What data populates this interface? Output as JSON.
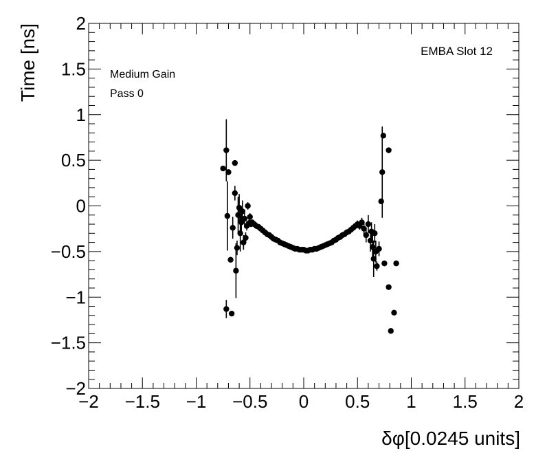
{
  "chart_data": {
    "type": "scatter",
    "title": "",
    "xlabel": "δφ[0.0245 units]",
    "ylabel": "Time [ns]",
    "xlim": [
      -2,
      2
    ],
    "ylim": [
      -2,
      2
    ],
    "x_ticks": [
      "−2",
      "−1.5",
      "−1",
      "−0.5",
      "0",
      "0.5",
      "1",
      "1.5",
      "2"
    ],
    "y_ticks": [
      "−2",
      "−1.5",
      "−1",
      "−0.5",
      "0",
      "0.5",
      "1",
      "1.5",
      "2"
    ],
    "annotations": {
      "top_right": "EMBA Slot 12",
      "line1": "Medium Gain",
      "line2": "Pass 0"
    },
    "grid": false,
    "marker_color": "#000000",
    "points": [
      {
        "x": -0.75,
        "y": 0.41,
        "err": 0
      },
      {
        "x": -0.72,
        "y": 0.61,
        "err": 0.34
      },
      {
        "x": -0.72,
        "y": -1.13,
        "err": 0.1
      },
      {
        "x": -0.71,
        "y": -0.11,
        "err": 0.38
      },
      {
        "x": -0.7,
        "y": 0.37,
        "err": 0
      },
      {
        "x": -0.68,
        "y": -0.59,
        "err": 0
      },
      {
        "x": -0.67,
        "y": -1.18,
        "err": 0
      },
      {
        "x": -0.66,
        "y": -0.24,
        "err": 0.12
      },
      {
        "x": -0.64,
        "y": 0.47,
        "err": 0
      },
      {
        "x": -0.64,
        "y": 0.14,
        "err": 0.08
      },
      {
        "x": -0.63,
        "y": -0.71,
        "err": 0.3
      },
      {
        "x": -0.62,
        "y": -0.46,
        "err": 0.08
      },
      {
        "x": -0.61,
        "y": -0.1,
        "err": 0.2
      },
      {
        "x": -0.6,
        "y": -0.02,
        "err": 0.15
      },
      {
        "x": -0.59,
        "y": -0.3,
        "err": 0.2
      },
      {
        "x": -0.58,
        "y": -0.18,
        "err": 0.1
      },
      {
        "x": -0.57,
        "y": -0.06,
        "err": 0.12
      },
      {
        "x": -0.56,
        "y": -0.4,
        "err": 0.08
      },
      {
        "x": -0.55,
        "y": -0.14,
        "err": 0.1
      },
      {
        "x": -0.54,
        "y": -0.35,
        "err": 0.06
      },
      {
        "x": -0.53,
        "y": -0.22,
        "err": 0.05
      },
      {
        "x": -0.52,
        "y": -0.0,
        "err": 0.04
      },
      {
        "x": -0.51,
        "y": -0.19,
        "err": 0.04
      },
      {
        "x": -0.5,
        "y": -0.12,
        "err": 0.04
      },
      {
        "x": -0.49,
        "y": -0.2,
        "err": 0.03
      },
      {
        "x": -0.48,
        "y": -0.18,
        "err": 0.03
      },
      {
        "x": -0.46,
        "y": -0.2,
        "err": 0.03
      },
      {
        "x": -0.44,
        "y": -0.22,
        "err": 0.03
      },
      {
        "x": -0.42,
        "y": -0.23,
        "err": 0.02
      },
      {
        "x": -0.4,
        "y": -0.25,
        "err": 0.02
      },
      {
        "x": -0.38,
        "y": -0.27,
        "err": 0.02
      },
      {
        "x": -0.36,
        "y": -0.29,
        "err": 0.02
      },
      {
        "x": -0.34,
        "y": -0.31,
        "err": 0.02
      },
      {
        "x": -0.32,
        "y": -0.32,
        "err": 0.02
      },
      {
        "x": -0.3,
        "y": -0.34,
        "err": 0.02
      },
      {
        "x": -0.28,
        "y": -0.36,
        "err": 0.02
      },
      {
        "x": -0.26,
        "y": -0.37,
        "err": 0.02
      },
      {
        "x": -0.24,
        "y": -0.38,
        "err": 0.02
      },
      {
        "x": -0.22,
        "y": -0.4,
        "err": 0.02
      },
      {
        "x": -0.2,
        "y": -0.41,
        "err": 0.02
      },
      {
        "x": -0.18,
        "y": -0.42,
        "err": 0.02
      },
      {
        "x": -0.16,
        "y": -0.43,
        "err": 0.02
      },
      {
        "x": -0.14,
        "y": -0.44,
        "err": 0.02
      },
      {
        "x": -0.12,
        "y": -0.45,
        "err": 0.02
      },
      {
        "x": -0.1,
        "y": -0.46,
        "err": 0.02
      },
      {
        "x": -0.08,
        "y": -0.47,
        "err": 0.02
      },
      {
        "x": -0.06,
        "y": -0.47,
        "err": 0.02
      },
      {
        "x": -0.04,
        "y": -0.48,
        "err": 0.02
      },
      {
        "x": -0.02,
        "y": -0.48,
        "err": 0.02
      },
      {
        "x": 0.0,
        "y": -0.48,
        "err": 0.02
      },
      {
        "x": 0.02,
        "y": -0.49,
        "err": 0.02
      },
      {
        "x": 0.04,
        "y": -0.49,
        "err": 0.02
      },
      {
        "x": 0.06,
        "y": -0.48,
        "err": 0.02
      },
      {
        "x": 0.08,
        "y": -0.48,
        "err": 0.02
      },
      {
        "x": 0.1,
        "y": -0.47,
        "err": 0.02
      },
      {
        "x": 0.12,
        "y": -0.47,
        "err": 0.02
      },
      {
        "x": 0.14,
        "y": -0.46,
        "err": 0.02
      },
      {
        "x": 0.16,
        "y": -0.45,
        "err": 0.02
      },
      {
        "x": 0.18,
        "y": -0.44,
        "err": 0.02
      },
      {
        "x": 0.2,
        "y": -0.43,
        "err": 0.02
      },
      {
        "x": 0.22,
        "y": -0.42,
        "err": 0.02
      },
      {
        "x": 0.24,
        "y": -0.41,
        "err": 0.02
      },
      {
        "x": 0.26,
        "y": -0.4,
        "err": 0.02
      },
      {
        "x": 0.28,
        "y": -0.38,
        "err": 0.02
      },
      {
        "x": 0.3,
        "y": -0.37,
        "err": 0.02
      },
      {
        "x": 0.32,
        "y": -0.35,
        "err": 0.02
      },
      {
        "x": 0.34,
        "y": -0.34,
        "err": 0.02
      },
      {
        "x": 0.36,
        "y": -0.32,
        "err": 0.02
      },
      {
        "x": 0.38,
        "y": -0.31,
        "err": 0.02
      },
      {
        "x": 0.4,
        "y": -0.29,
        "err": 0.02
      },
      {
        "x": 0.42,
        "y": -0.28,
        "err": 0.03
      },
      {
        "x": 0.44,
        "y": -0.26,
        "err": 0.03
      },
      {
        "x": 0.46,
        "y": -0.24,
        "err": 0.03
      },
      {
        "x": 0.48,
        "y": -0.22,
        "err": 0.03
      },
      {
        "x": 0.5,
        "y": -0.2,
        "err": 0.04
      },
      {
        "x": 0.52,
        "y": -0.22,
        "err": 0.04
      },
      {
        "x": 0.54,
        "y": -0.18,
        "err": 0.05
      },
      {
        "x": 0.56,
        "y": -0.25,
        "err": 0.06
      },
      {
        "x": 0.58,
        "y": -0.32,
        "err": 0.08
      },
      {
        "x": 0.6,
        "y": -0.2,
        "err": 0.1
      },
      {
        "x": 0.62,
        "y": -0.38,
        "err": 0.12
      },
      {
        "x": 0.63,
        "y": -0.28,
        "err": 0.1
      },
      {
        "x": 0.64,
        "y": -0.45,
        "err": 0.15
      },
      {
        "x": 0.65,
        "y": -0.58,
        "err": 0.2
      },
      {
        "x": 0.66,
        "y": -0.3,
        "err": 0.1
      },
      {
        "x": 0.67,
        "y": -0.5,
        "err": 0.12
      },
      {
        "x": 0.68,
        "y": -0.66,
        "err": 0.05
      },
      {
        "x": 0.7,
        "y": -0.47,
        "err": 0.08
      },
      {
        "x": 0.72,
        "y": 0.05,
        "err": 0
      },
      {
        "x": 0.73,
        "y": 0.37,
        "err": 0.5
      },
      {
        "x": 0.74,
        "y": 0.77,
        "err": 0
      },
      {
        "x": 0.75,
        "y": -0.63,
        "err": 0
      },
      {
        "x": 0.79,
        "y": 0.61,
        "err": 0
      },
      {
        "x": 0.79,
        "y": -0.89,
        "err": 0
      },
      {
        "x": 0.81,
        "y": -1.37,
        "err": 0
      },
      {
        "x": 0.84,
        "y": -1.17,
        "err": 0
      },
      {
        "x": 0.86,
        "y": -0.63,
        "err": 0
      }
    ]
  }
}
